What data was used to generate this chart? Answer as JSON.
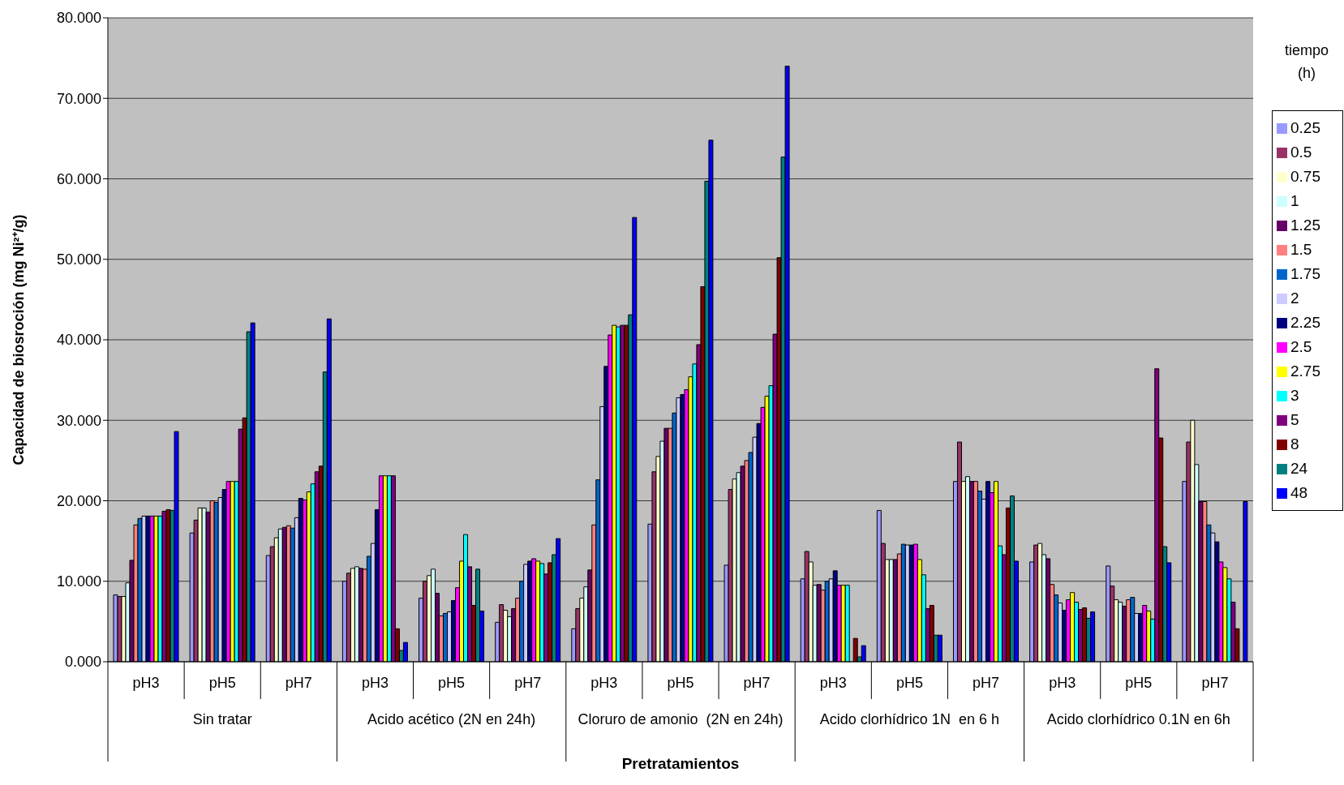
{
  "chart_data": {
    "type": "bar",
    "xlabel": "Pretratamientos",
    "ylabel": "Capacidad de biosroción (mg Ni²⁺/g)",
    "legend_title": "tiempo (h)",
    "categories": [
      "pH3",
      "pH5",
      "pH7",
      "pH3",
      "pH5",
      "pH7",
      "pH3",
      "pH5",
      "pH7",
      "pH3",
      "pH5",
      "pH7",
      "pH3",
      "pH5",
      "pH7"
    ],
    "annotations": [
      "Sin tratar",
      "Acido acético (2N en 24h)",
      "Cloruro de amonio  (2N en 24h)",
      "Acido clorhídrico 1N  en 6 h",
      "Acido clorhídrico 0.1N en 6h"
    ],
    "ylim": [
      0,
      80
    ],
    "yticks": [
      {
        "value": 0,
        "label": "0.000"
      },
      {
        "value": 10,
        "label": "10.000"
      },
      {
        "value": 20,
        "label": "20.000"
      },
      {
        "value": 30,
        "label": "30.000"
      },
      {
        "value": 40,
        "label": "40.000"
      },
      {
        "value": 50,
        "label": "50.000"
      },
      {
        "value": 60,
        "label": "60.000"
      },
      {
        "value": 70,
        "label": "70.000"
      },
      {
        "value": 80,
        "label": "80.000"
      }
    ],
    "grid": "y",
    "legend": "right",
    "series": [
      {
        "name": "0.25",
        "color": "#9999ff",
        "values": [
          8.3,
          16.0,
          13.2,
          10.0,
          7.9,
          4.9,
          4.1,
          17.1,
          12.0,
          10.3,
          18.8,
          22.4,
          12.4,
          11.9,
          22.4
        ]
      },
      {
        "name": "0.5",
        "color": "#993366",
        "values": [
          8.1,
          17.6,
          14.3,
          11.0,
          10.0,
          7.1,
          6.6,
          23.6,
          21.4,
          13.7,
          14.7,
          27.3,
          14.5,
          9.4,
          27.3
        ]
      },
      {
        "name": "0.75",
        "color": "#ffffcc",
        "values": [
          8.1,
          19.1,
          15.4,
          11.6,
          10.7,
          6.4,
          7.9,
          25.5,
          22.7,
          12.4,
          12.7,
          22.4,
          14.7,
          7.7,
          30.0
        ]
      },
      {
        "name": "1",
        "color": "#ccffff",
        "values": [
          9.8,
          19.1,
          16.5,
          11.8,
          11.5,
          5.6,
          9.3,
          27.4,
          23.5,
          9.5,
          12.7,
          23.0,
          13.3,
          7.4,
          24.5
        ]
      },
      {
        "name": "1.25",
        "color": "#660066",
        "values": [
          12.6,
          18.6,
          16.7,
          11.6,
          8.5,
          6.6,
          11.4,
          29.0,
          24.3,
          9.6,
          12.7,
          22.4,
          12.8,
          6.9,
          19.9
        ]
      },
      {
        "name": "1.5",
        "color": "#ff8080",
        "values": [
          17.0,
          20.0,
          16.9,
          11.5,
          5.7,
          7.9,
          17.0,
          29.0,
          25.0,
          8.9,
          13.4,
          22.4,
          9.6,
          7.7,
          19.9
        ]
      },
      {
        "name": "1.75",
        "color": "#0066cc",
        "values": [
          17.8,
          19.8,
          16.6,
          13.1,
          6.0,
          10.0,
          22.6,
          30.9,
          26.0,
          10.0,
          14.6,
          21.2,
          8.3,
          8.0,
          17.0
        ]
      },
      {
        "name": "2",
        "color": "#ccccff",
        "values": [
          18.1,
          20.4,
          17.9,
          14.7,
          6.2,
          12.1,
          31.7,
          32.8,
          27.9,
          10.3,
          14.5,
          20.2,
          7.3,
          6.0,
          16.0
        ]
      },
      {
        "name": "2.25",
        "color": "#000080",
        "values": [
          18.1,
          21.4,
          20.3,
          18.9,
          7.6,
          12.5,
          36.7,
          33.2,
          29.6,
          11.3,
          14.5,
          22.4,
          6.4,
          6.0,
          14.9
        ]
      },
      {
        "name": "2.5",
        "color": "#ff00ff",
        "values": [
          18.1,
          22.4,
          20.1,
          23.1,
          9.2,
          12.8,
          40.6,
          33.8,
          31.6,
          9.5,
          14.6,
          21.0,
          7.7,
          7.0,
          12.4
        ]
      },
      {
        "name": "2.75",
        "color": "#ffff00",
        "values": [
          18.1,
          22.4,
          21.1,
          23.1,
          12.5,
          12.5,
          41.8,
          35.4,
          33.0,
          9.5,
          12.7,
          22.4,
          8.6,
          6.3,
          11.7
        ]
      },
      {
        "name": "3",
        "color": "#00ffff",
        "values": [
          18.1,
          22.4,
          22.1,
          23.1,
          15.8,
          12.2,
          41.6,
          37.0,
          34.3,
          9.5,
          10.8,
          14.4,
          7.4,
          5.3,
          10.3
        ]
      },
      {
        "name": "5",
        "color": "#800080",
        "values": [
          18.7,
          28.9,
          23.6,
          23.1,
          11.8,
          10.9,
          41.8,
          39.4,
          40.7,
          null,
          6.6,
          13.3,
          6.5,
          36.4,
          7.4
        ]
      },
      {
        "name": "8",
        "color": "#800000",
        "values": [
          18.9,
          30.3,
          24.3,
          4.1,
          7.0,
          12.3,
          41.8,
          46.6,
          50.2,
          2.9,
          7.0,
          19.1,
          6.7,
          27.8,
          4.1
        ]
      },
      {
        "name": "24",
        "color": "#008080",
        "values": [
          18.8,
          41.0,
          36.0,
          1.4,
          11.5,
          13.3,
          43.1,
          59.7,
          62.7,
          0.6,
          3.3,
          20.6,
          5.4,
          14.3,
          null
        ]
      },
      {
        "name": "48",
        "color": "#0000ff",
        "values": [
          28.6,
          42.1,
          42.6,
          2.4,
          6.3,
          15.3,
          55.2,
          64.8,
          74.0,
          2.0,
          3.3,
          12.5,
          6.2,
          12.3,
          19.9
        ]
      }
    ]
  }
}
